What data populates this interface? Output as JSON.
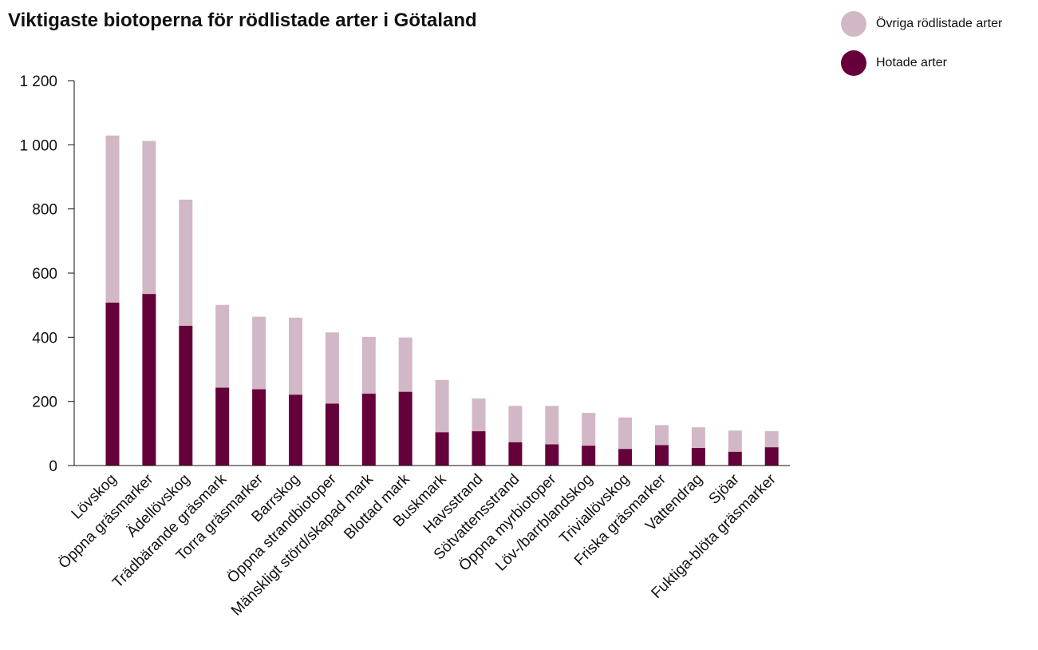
{
  "title": "Viktigaste biotoperna för rödlistade arter i Götaland",
  "legend": [
    {
      "label": "Övriga rödlistade arter",
      "color": "#d2b7c6"
    },
    {
      "label": "Hotade arter",
      "color": "#66003a"
    }
  ],
  "chart_data": {
    "type": "bar",
    "stacked": true,
    "categories": [
      "Lövskog",
      "Öppna gräsmarker",
      "Ädellövskog",
      "Trädbärande gräsmark",
      "Torra gräsmarker",
      "Barrskog",
      "Öppna strandbiotoper",
      "Mänskligt störd/skapad mark",
      "Blottad mark",
      "Buskmark",
      "Havsstrand",
      "Sötvattensstrand",
      "Öppna myrbiotoper",
      "Löv-/barrblandskog",
      "Triviallövskog",
      "Friska gräsmarker",
      "Vattendrag",
      "Sjöar",
      "Fuktiga-blöta gräsmarker"
    ],
    "series": [
      {
        "name": "Hotade arter",
        "color": "#66003a",
        "values": [
          508,
          535,
          436,
          243,
          238,
          221,
          193,
          224,
          230,
          104,
          107,
          73,
          66,
          62,
          52,
          64,
          55,
          43,
          57
        ]
      },
      {
        "name": "Övriga rödlistade arter",
        "color": "#d2b7c6",
        "values": [
          521,
          477,
          393,
          258,
          226,
          240,
          222,
          177,
          169,
          163,
          102,
          113,
          120,
          102,
          98,
          62,
          64,
          66,
          50
        ]
      }
    ],
    "ylim": [
      0,
      1200
    ],
    "yticks": [
      0,
      200,
      400,
      600,
      800,
      1000,
      1200
    ],
    "ytick_labels": [
      "0",
      "200",
      "400",
      "600",
      "800",
      "1 000",
      "1 200"
    ],
    "xlabel": "",
    "ylabel": "",
    "grid": false,
    "legend_position": "top-right"
  }
}
